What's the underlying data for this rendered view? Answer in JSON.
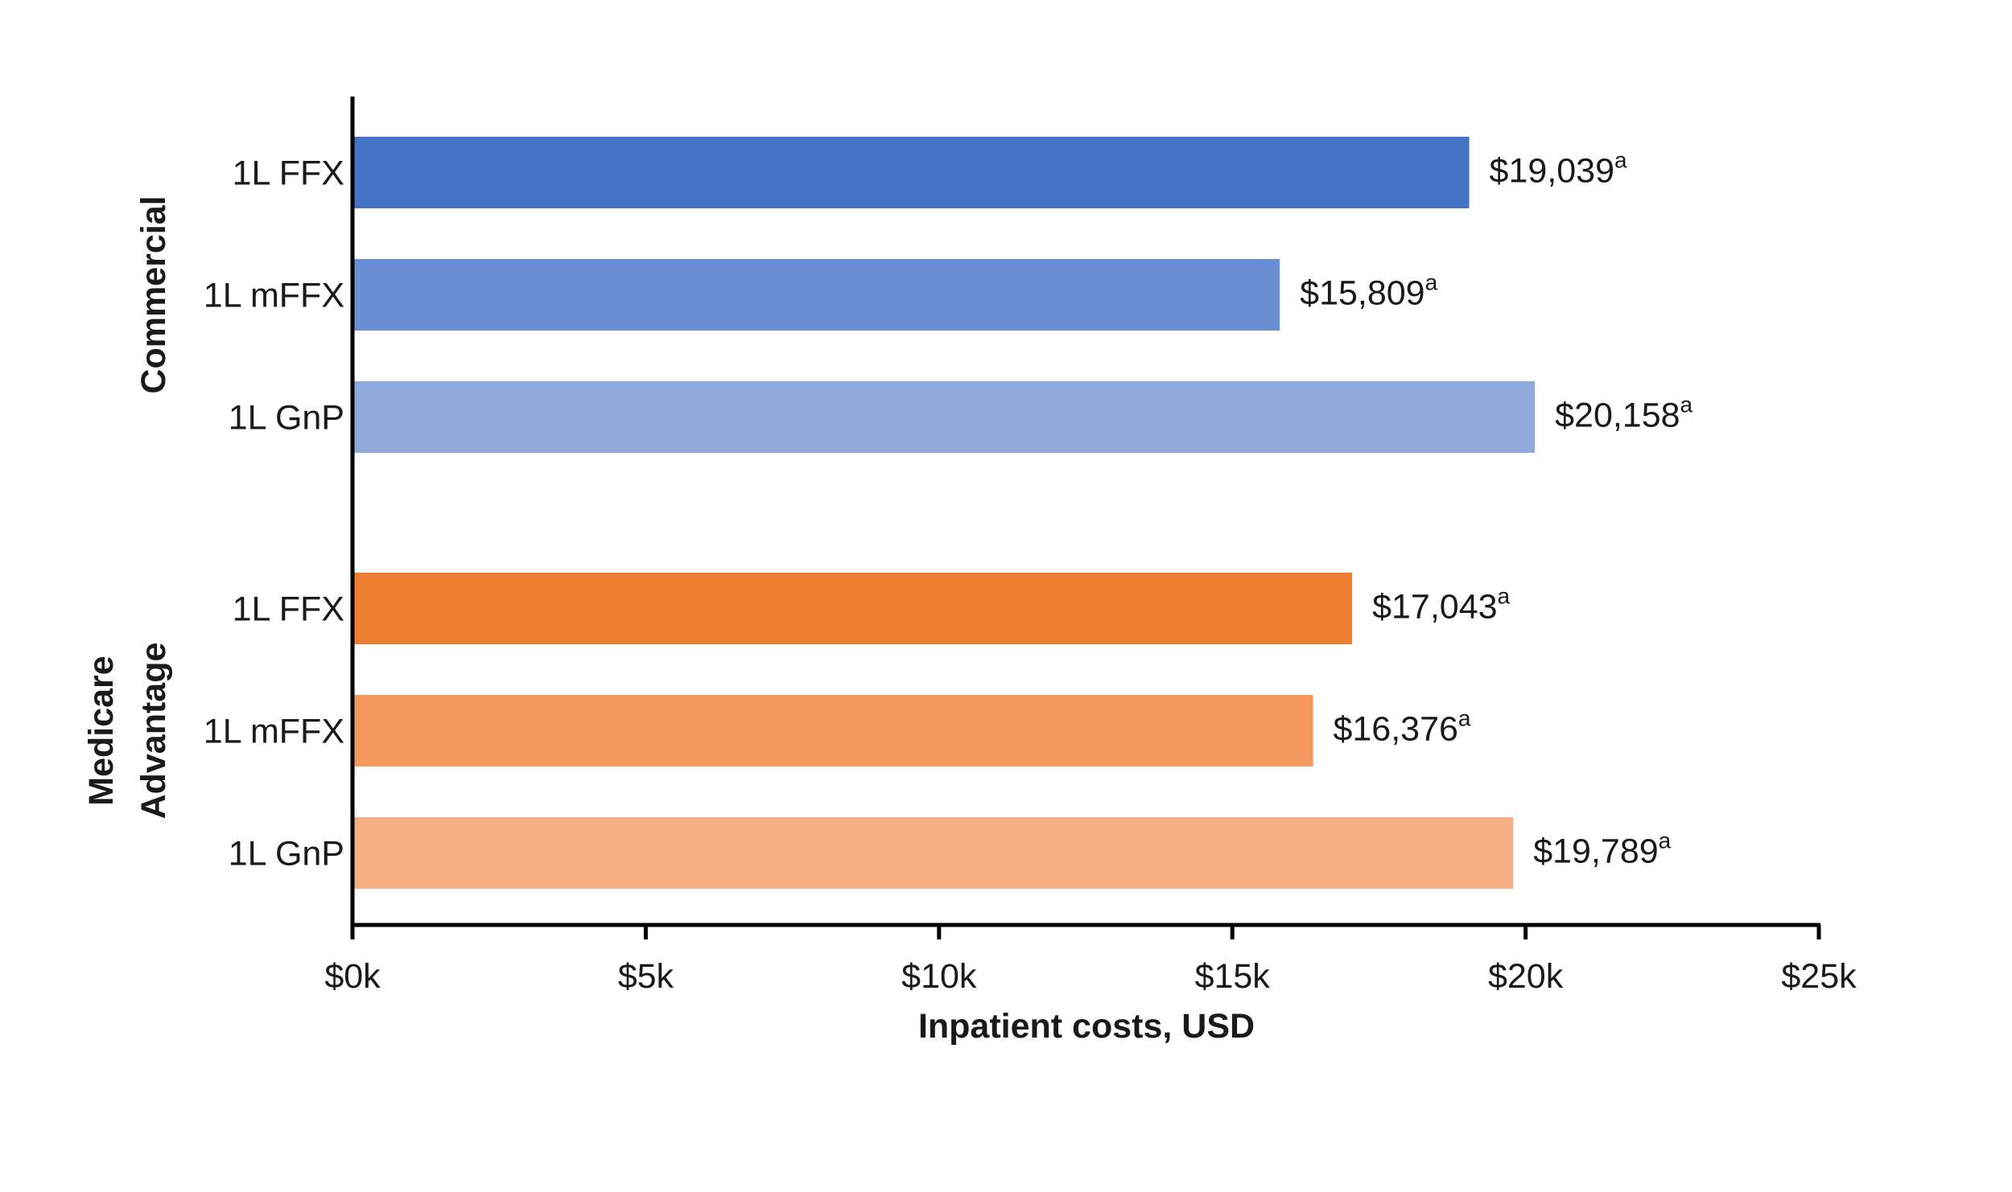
{
  "chart_data": {
    "type": "bar",
    "orientation": "horizontal",
    "title": "",
    "xlabel": "Inpatient costs, USD",
    "ylabel": "",
    "xlim": [
      0,
      25000
    ],
    "x_ticks": [
      {
        "value": 0,
        "label": "$0k"
      },
      {
        "value": 5000,
        "label": "$5k"
      },
      {
        "value": 10000,
        "label": "$10k"
      },
      {
        "value": 15000,
        "label": "$15k"
      },
      {
        "value": 20000,
        "label": "$20k"
      },
      {
        "value": 25000,
        "label": "$25k"
      }
    ],
    "grid": false,
    "groups": [
      {
        "name": "Commercial",
        "name_lines": [
          "Commercial"
        ],
        "bars": [
          {
            "category": "1L FFX",
            "value": 19039,
            "label": "$19,039",
            "superscript": "a",
            "color": "#4472c4"
          },
          {
            "category": "1L mFFX",
            "value": 15809,
            "label": "$15,809",
            "superscript": "a",
            "color": "#6b8fd4"
          },
          {
            "category": "1L GnP",
            "value": 20158,
            "label": "$20,158",
            "superscript": "a",
            "color": "#8faadc"
          }
        ]
      },
      {
        "name": "Medicare Advantage",
        "name_lines": [
          "Medicare",
          "Advantage"
        ],
        "bars": [
          {
            "category": "1L FFX",
            "value": 17043,
            "label": "$17,043",
            "superscript": "a",
            "color": "#ed7d31"
          },
          {
            "category": "1L mFFX",
            "value": 16376,
            "label": "$16,376",
            "superscript": "a",
            "color": "#f2995b"
          },
          {
            "category": "1L GnP",
            "value": 19789,
            "label": "$19,789",
            "superscript": "a",
            "color": "#f4b084"
          }
        ]
      }
    ]
  }
}
